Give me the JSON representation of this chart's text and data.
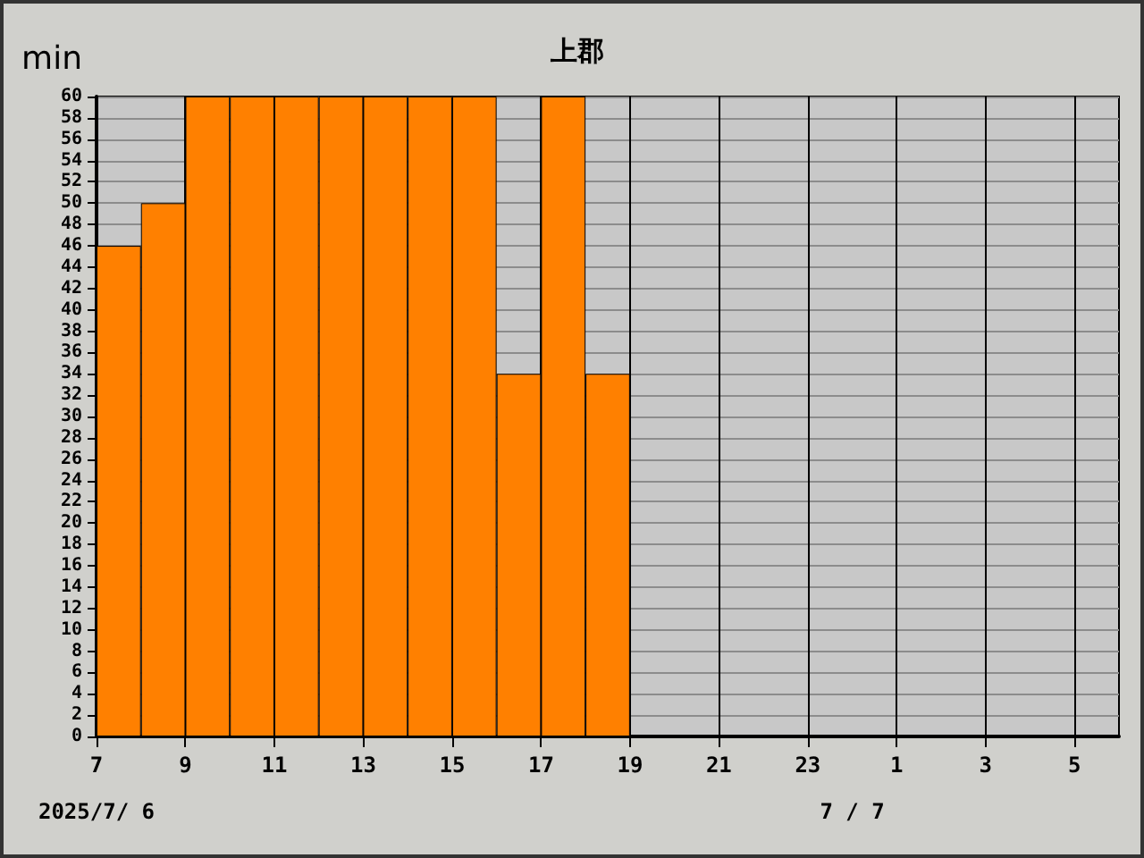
{
  "chart_data": {
    "type": "bar",
    "title": "上郡",
    "ylabel": "min",
    "x": [
      "2025-07-06T07:30",
      "2025-07-06T08:30",
      "2025-07-06T09:30",
      "2025-07-06T10:30",
      "2025-07-06T11:30",
      "2025-07-06T12:30",
      "2025-07-06T13:30",
      "2025-07-06T14:30",
      "2025-07-06T15:30",
      "2025-07-06T16:30",
      "2025-07-06T17:30",
      "2025-07-06T18:30"
    ],
    "values": [
      46,
      50,
      60,
      60,
      60,
      60,
      60,
      60,
      60,
      34,
      60,
      34
    ],
    "color": "#ff8000",
    "xlim": [
      "2025-07-06T07:00",
      "2025-07-07T06:00"
    ],
    "xticks": [
      {
        "value": "2025-07-06T07:00",
        "label": "7"
      },
      {
        "value": "2025-07-06T09:00",
        "label": "9"
      },
      {
        "value": "2025-07-06T11:00",
        "label": "11"
      },
      {
        "value": "2025-07-06T13:00",
        "label": "13"
      },
      {
        "value": "2025-07-06T15:00",
        "label": "15"
      },
      {
        "value": "2025-07-06T17:00",
        "label": "17"
      },
      {
        "value": "2025-07-06T19:00",
        "label": "19"
      },
      {
        "value": "2025-07-06T21:00",
        "label": "21"
      },
      {
        "value": "2025-07-06T23:00",
        "label": "23"
      },
      {
        "value": "2025-07-07T01:00",
        "label": "1"
      },
      {
        "value": "2025-07-07T03:00",
        "label": "3"
      },
      {
        "value": "2025-07-07T05:00",
        "label": "5"
      }
    ],
    "ylim": [
      0,
      60
    ],
    "yticks": [
      0,
      2,
      4,
      6,
      8,
      10,
      12,
      14,
      16,
      18,
      20,
      22,
      24,
      26,
      28,
      30,
      32,
      34,
      36,
      38,
      40,
      42,
      44,
      46,
      48,
      50,
      52,
      54,
      56,
      58,
      60
    ],
    "grid": true,
    "annotations": [
      "2025/7/ 6",
      "7 / 7"
    ]
  }
}
